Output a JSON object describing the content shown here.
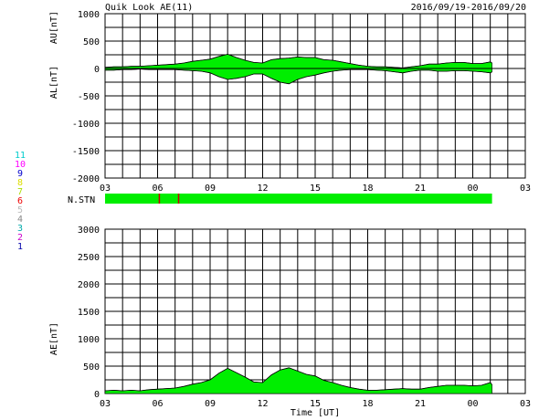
{
  "header": {
    "title": "Quik Look AE(11)",
    "date_range": "2016/09/19-2016/09/20"
  },
  "colors": {
    "fill": "#00ee00",
    "grid": "#000000",
    "bg": "#ffffff",
    "nstn_drop": "#cc0000"
  },
  "station_legend": [
    {
      "label": "11",
      "color": "#00cccc"
    },
    {
      "label": "10",
      "color": "#ff00ff"
    },
    {
      "label": "9",
      "color": "#0000cc"
    },
    {
      "label": "8",
      "color": "#dddd00"
    },
    {
      "label": "7",
      "color": "#aadd00"
    },
    {
      "label": "6",
      "color": "#ee0000"
    },
    {
      "label": "5",
      "color": "#bbbbbb"
    },
    {
      "label": "4",
      "color": "#888888"
    },
    {
      "label": "3",
      "color": "#00aaaa"
    },
    {
      "label": "2",
      "color": "#cc00cc"
    },
    {
      "label": "1",
      "color": "#0000aa"
    }
  ],
  "chart_data": [
    {
      "type": "area",
      "name": "au-al-panel",
      "ylabel_upper": "AU[nT]",
      "ylabel_lower": "AL[nT]",
      "ylim": [
        -2000,
        1000
      ],
      "yticks": [
        1000,
        500,
        0,
        -500,
        -1000,
        -1500,
        -2000
      ],
      "xlim_hours": [
        0,
        24
      ],
      "xtick_labels": [
        "03",
        "06",
        "09",
        "12",
        "15",
        "18",
        "21",
        "00",
        "03"
      ],
      "data_end_hour": 22.1,
      "grid": true,
      "x_hours": [
        0,
        0.5,
        1,
        1.5,
        2,
        2.5,
        3,
        3.5,
        4,
        4.5,
        5,
        5.5,
        6,
        6.5,
        7,
        7.5,
        8,
        8.5,
        9,
        9.5,
        10,
        10.5,
        11,
        11.5,
        12,
        12.5,
        13,
        13.5,
        14,
        14.5,
        15,
        15.5,
        16,
        16.5,
        17,
        17.5,
        18,
        18.5,
        19,
        19.5,
        20,
        20.5,
        21,
        21.5,
        22,
        22.1
      ],
      "au": [
        20,
        30,
        30,
        40,
        40,
        50,
        60,
        70,
        80,
        100,
        130,
        150,
        170,
        220,
        260,
        200,
        150,
        110,
        100,
        160,
        180,
        190,
        210,
        200,
        200,
        160,
        150,
        120,
        90,
        60,
        40,
        30,
        30,
        20,
        10,
        30,
        50,
        80,
        80,
        100,
        110,
        110,
        90,
        90,
        120,
        100
      ],
      "al": [
        -30,
        -30,
        -20,
        -20,
        -10,
        -20,
        -20,
        -20,
        -20,
        -30,
        -40,
        -50,
        -80,
        -150,
        -200,
        -180,
        -150,
        -100,
        -100,
        -180,
        -250,
        -280,
        -200,
        -150,
        -120,
        -80,
        -50,
        -30,
        -20,
        -20,
        -20,
        -30,
        -40,
        -60,
        -80,
        -50,
        -30,
        -30,
        -50,
        -50,
        -40,
        -40,
        -50,
        -60,
        -80,
        -60
      ]
    },
    {
      "type": "bar",
      "name": "n-stn-strip",
      "ylabel": "N.STN",
      "drops_hours": [
        3.1,
        4.2
      ]
    },
    {
      "type": "area",
      "name": "ae-panel",
      "ylabel": "AE[nT]",
      "xlabel": "Time [UT]",
      "ylim": [
        0,
        3000
      ],
      "yticks": [
        3000,
        2500,
        2000,
        1500,
        1000,
        500,
        0
      ],
      "xlim_hours": [
        0,
        24
      ],
      "xtick_labels": [
        "03",
        "06",
        "09",
        "12",
        "15",
        "18",
        "21",
        "00",
        "03"
      ],
      "data_end_hour": 22.1,
      "grid": true,
      "x_hours": [
        0,
        0.5,
        1,
        1.5,
        2,
        2.5,
        3,
        3.5,
        4,
        4.5,
        5,
        5.5,
        6,
        6.5,
        7,
        7.5,
        8,
        8.5,
        9,
        9.5,
        10,
        10.5,
        11,
        11.5,
        12,
        12.5,
        13,
        13.5,
        14,
        14.5,
        15,
        15.5,
        16,
        16.5,
        17,
        17.5,
        18,
        18.5,
        19,
        19.5,
        20,
        20.5,
        21,
        21.5,
        22,
        22.1
      ],
      "ae": [
        50,
        60,
        50,
        60,
        50,
        70,
        80,
        90,
        100,
        130,
        170,
        200,
        250,
        370,
        460,
        380,
        300,
        210,
        200,
        340,
        430,
        470,
        410,
        350,
        320,
        240,
        200,
        150,
        110,
        80,
        60,
        60,
        70,
        80,
        90,
        80,
        80,
        110,
        130,
        150,
        150,
        150,
        140,
        150,
        200,
        160
      ]
    }
  ]
}
